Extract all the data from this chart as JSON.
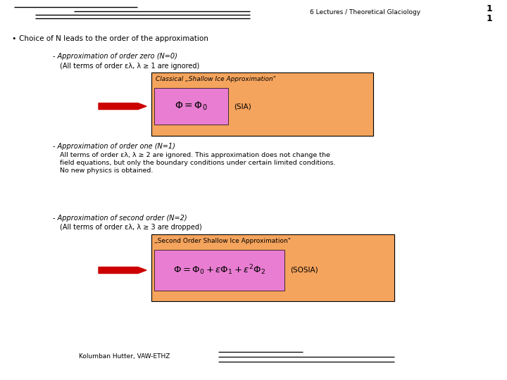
{
  "bg_color": "#ffffff",
  "line_color": "#000000",
  "header_text": "6 Lectures / Theoretical Glaciology",
  "bullet_text": "Choice of N leads to the order of the approximation",
  "section1_title": "- Approximation of order zero (N=0)",
  "section1_sub": "(All terms of order ελ, λ ≥ 1 are ignored)",
  "box1_label": "Classical „Shallow Ice Approximation\"",
  "box1_formula": "$\\Phi = \\Phi_0$",
  "box1_tag": "(SIA)",
  "section2_title": "- Approximation of order one (N=1)",
  "section2_line1": "All terms of order ελ, λ ≥ 2 are ignored. This approximation does not change the",
  "section2_line2": "field equations, but only the boundary conditions under certain limited conditions.",
  "section2_line3": "No new physics is obtained.",
  "section3_title": "- Approximation of second order (N=2)",
  "section3_sub": "(All terms of order ελ, λ ≥ 3 are dropped)",
  "box2_label": "„Second Order Shallow Ice Approximation\"",
  "box2_formula": "$\\Phi = \\Phi_0 + \\varepsilon\\Phi_1 + \\varepsilon^2\\Phi_2$",
  "box2_tag": "(SOSIA)",
  "footer_text": "Kolumban Hutter, VAW-ETHZ",
  "orange_color": "#f5a45d",
  "pink_color": "#e87dd1",
  "arrow_color": "#cc0000",
  "text_color": "#000000"
}
